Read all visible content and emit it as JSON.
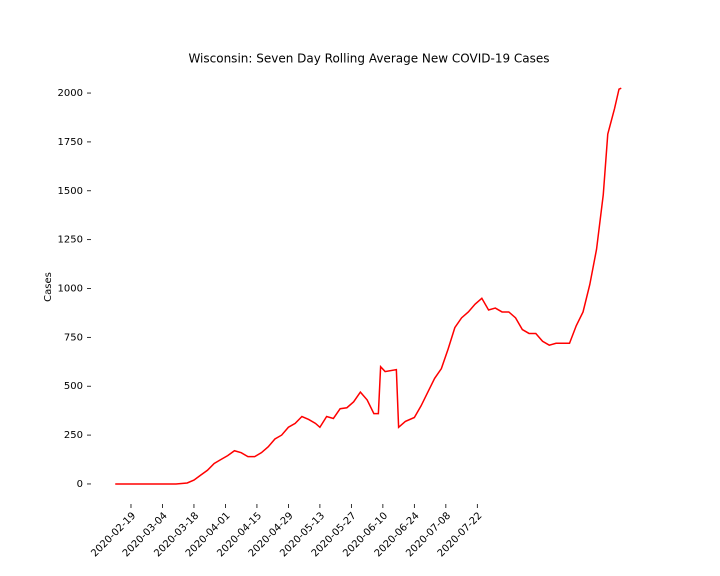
{
  "chart_data": {
    "type": "line",
    "title": "Wisconsin: Seven Day Rolling Average New COVID-19 Cases",
    "y_label": "Cases",
    "x": [
      "2020-02-12",
      "2020-03-10",
      "2020-03-15",
      "2020-03-18",
      "2020-03-21",
      "2020-03-24",
      "2020-03-27",
      "2020-03-30",
      "2020-04-02",
      "2020-04-05",
      "2020-04-08",
      "2020-04-11",
      "2020-04-14",
      "2020-04-17",
      "2020-04-20",
      "2020-04-23",
      "2020-04-26",
      "2020-04-29",
      "2020-05-02",
      "2020-05-05",
      "2020-05-08",
      "2020-05-11",
      "2020-05-13",
      "2020-05-16",
      "2020-05-19",
      "2020-05-22",
      "2020-05-25",
      "2020-05-28",
      "2020-05-31",
      "2020-06-03",
      "2020-06-06",
      "2020-06-08",
      "2020-06-09",
      "2020-06-11",
      "2020-06-16",
      "2020-06-17",
      "2020-06-20",
      "2020-06-24",
      "2020-06-27",
      "2020-06-30",
      "2020-07-03",
      "2020-07-06",
      "2020-07-09",
      "2020-07-12",
      "2020-07-15",
      "2020-07-18",
      "2020-07-21",
      "2020-07-24",
      "2020-07-27",
      "2020-07-30",
      "2020-08-02",
      "2020-08-05",
      "2020-08-08",
      "2020-08-11",
      "2020-08-14",
      "2020-08-17",
      "2020-08-20",
      "2020-08-23",
      "2020-08-26",
      "2020-08-29",
      "2020-09-01",
      "2020-09-04",
      "2020-09-07",
      "2020-09-10",
      "2020-09-13",
      "2020-09-16",
      "2020-09-18",
      "2020-09-21",
      "2020-09-23",
      "2020-09-24"
    ],
    "series": [
      {
        "name": "Cases",
        "color": "#ff0000",
        "values": [
          0,
          0,
          5,
          20,
          45,
          70,
          105,
          125,
          145,
          170,
          160,
          140,
          140,
          160,
          190,
          230,
          250,
          290,
          310,
          345,
          330,
          310,
          290,
          345,
          335,
          385,
          390,
          420,
          470,
          430,
          360,
          360,
          600,
          575,
          585,
          290,
          320,
          340,
          400,
          470,
          540,
          590,
          690,
          800,
          850,
          880,
          920,
          950,
          890,
          900,
          880,
          880,
          850,
          790,
          770,
          770,
          730,
          710,
          720,
          720,
          720,
          810,
          880,
          1020,
          1200,
          1480,
          1790,
          1920,
          2020,
          2025
        ]
      }
    ],
    "xlim": [
      "2020-02-01",
      "2020-10-05"
    ],
    "xticks": [
      "2020-02-19",
      "2020-03-04",
      "2020-03-18",
      "2020-04-01",
      "2020-04-15",
      "2020-04-29",
      "2020-05-13",
      "2020-05-27",
      "2020-06-10",
      "2020-06-24",
      "2020-07-08",
      "2020-07-22"
    ],
    "ylim": [
      -100,
      2100
    ],
    "yticks": [
      0,
      250,
      500,
      750,
      1000,
      1250,
      1500,
      1750,
      2000
    ]
  }
}
